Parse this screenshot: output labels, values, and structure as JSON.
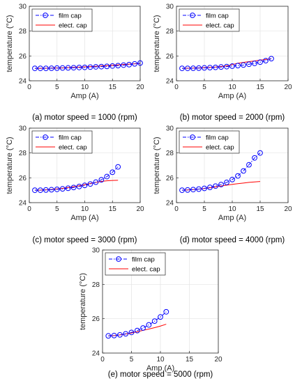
{
  "chart_data": [
    {
      "type": "line",
      "caption": "(a) motor speed = 1000 (rpm)",
      "xlabel": "Amp (A)",
      "ylabel": "temperature (°C)",
      "xlim": [
        0,
        20
      ],
      "ylim": [
        24,
        30
      ],
      "xticks": [
        0,
        5,
        10,
        15,
        20
      ],
      "yticks": [
        24,
        26,
        28,
        30
      ],
      "grid": true,
      "legend_position": "top-left",
      "series": [
        {
          "name": "film cap",
          "color": "#0000ff",
          "style": "dash-dot with circle markers",
          "x": [
            1,
            2,
            3,
            4,
            5,
            6,
            7,
            8,
            9,
            10,
            11,
            12,
            13,
            14,
            15,
            16,
            17,
            18,
            19,
            20
          ],
          "y": [
            25.0,
            25.0,
            25.0,
            25.01,
            25.02,
            25.03,
            25.04,
            25.05,
            25.07,
            25.08,
            25.1,
            25.12,
            25.14,
            25.16,
            25.19,
            25.22,
            25.26,
            25.3,
            25.36,
            25.43
          ]
        },
        {
          "name": "elect. cap",
          "color": "#ff0000",
          "style": "solid",
          "x": [
            1,
            2,
            3,
            4,
            5,
            6,
            7,
            8,
            9,
            10,
            11,
            12,
            13,
            14,
            15,
            16,
            17,
            18,
            19,
            20
          ],
          "y": [
            25.0,
            25.0,
            25.01,
            25.02,
            25.03,
            25.04,
            25.06,
            25.08,
            25.1,
            25.12,
            25.14,
            25.16,
            25.19,
            25.22,
            25.25,
            25.28,
            25.31,
            25.34,
            25.37,
            25.4
          ]
        }
      ]
    },
    {
      "type": "line",
      "caption": "(b) motor speed = 2000 (rpm)",
      "xlabel": "Amp (A)",
      "ylabel": "temperature (°C)",
      "xlim": [
        0,
        20
      ],
      "ylim": [
        24,
        30
      ],
      "xticks": [
        0,
        5,
        10,
        15,
        20
      ],
      "yticks": [
        24,
        26,
        28,
        30
      ],
      "grid": true,
      "legend_position": "top-left",
      "series": [
        {
          "name": "film cap",
          "color": "#0000ff",
          "style": "dash-dot with circle markers",
          "x": [
            1,
            2,
            3,
            4,
            5,
            6,
            7,
            8,
            9,
            10,
            11,
            12,
            13,
            14,
            15,
            16,
            17
          ],
          "y": [
            25.0,
            25.0,
            25.01,
            25.02,
            25.04,
            25.06,
            25.08,
            25.11,
            25.14,
            25.18,
            25.22,
            25.27,
            25.33,
            25.4,
            25.5,
            25.62,
            25.78
          ]
        },
        {
          "name": "elect. cap",
          "color": "#ff0000",
          "style": "solid",
          "x": [
            1,
            2,
            3,
            4,
            5,
            6,
            7,
            8,
            9,
            10,
            11,
            12,
            13,
            14,
            15,
            16,
            17
          ],
          "y": [
            25.0,
            25.01,
            25.02,
            25.04,
            25.06,
            25.08,
            25.11,
            25.15,
            25.2,
            25.3,
            25.42,
            25.48,
            25.54,
            25.6,
            25.66,
            25.72,
            25.78
          ]
        }
      ]
    },
    {
      "type": "line",
      "caption": "(c) motor speed = 3000 (rpm)",
      "xlabel": "Amp (A)",
      "ylabel": "temperature (°C)",
      "xlim": [
        0,
        20
      ],
      "ylim": [
        24,
        30
      ],
      "xticks": [
        0,
        5,
        10,
        15,
        20
      ],
      "yticks": [
        24,
        26,
        28,
        30
      ],
      "grid": true,
      "legend_position": "top-left",
      "series": [
        {
          "name": "film cap",
          "color": "#0000ff",
          "style": "dash-dot with circle markers",
          "x": [
            1,
            2,
            3,
            4,
            5,
            6,
            7,
            8,
            9,
            10,
            11,
            12,
            13,
            14,
            15,
            16
          ],
          "y": [
            25.0,
            25.0,
            25.02,
            25.04,
            25.07,
            25.11,
            25.16,
            25.22,
            25.3,
            25.39,
            25.5,
            25.65,
            25.84,
            26.1,
            26.45,
            26.88
          ]
        },
        {
          "name": "elect. cap",
          "color": "#ff0000",
          "style": "solid",
          "x": [
            1,
            2,
            3,
            4,
            5,
            6,
            7,
            8,
            9,
            10,
            11,
            12,
            13,
            14,
            15,
            16
          ],
          "y": [
            25.0,
            25.01,
            25.03,
            25.06,
            25.1,
            25.15,
            25.21,
            25.28,
            25.36,
            25.45,
            25.54,
            25.63,
            25.71,
            25.76,
            25.79,
            25.8
          ]
        }
      ]
    },
    {
      "type": "line",
      "caption": "(d) motor speed = 4000 (rpm)",
      "xlabel": "Amp (A)",
      "ylabel": "temperature (°C)",
      "xlim": [
        0,
        20
      ],
      "ylim": [
        24,
        30
      ],
      "xticks": [
        0,
        5,
        10,
        15,
        20
      ],
      "yticks": [
        24,
        26,
        28,
        30
      ],
      "grid": true,
      "legend_position": "top-left",
      "series": [
        {
          "name": "film cap",
          "color": "#0000ff",
          "style": "dash-dot with circle markers",
          "x": [
            1,
            2,
            3,
            4,
            5,
            6,
            7,
            8,
            9,
            10,
            11,
            12,
            13,
            14,
            15
          ],
          "y": [
            25.0,
            25.02,
            25.05,
            25.09,
            25.15,
            25.23,
            25.33,
            25.46,
            25.63,
            25.86,
            26.15,
            26.55,
            27.05,
            27.6,
            28.0
          ]
        },
        {
          "name": "elect. cap",
          "color": "#ff0000",
          "style": "solid",
          "x": [
            1,
            2,
            3,
            4,
            5,
            6,
            7,
            8,
            9,
            10,
            11,
            12,
            13,
            14,
            15
          ],
          "y": [
            25.0,
            25.02,
            25.05,
            25.09,
            25.14,
            25.2,
            25.27,
            25.34,
            25.41,
            25.47,
            25.53,
            25.58,
            25.63,
            25.67,
            25.7
          ]
        }
      ]
    },
    {
      "type": "line",
      "caption": "(e) motor speed = 5000 (rpm)",
      "xlabel": "Amp (A)",
      "ylabel": "temperature (°C)",
      "xlim": [
        0,
        20
      ],
      "ylim": [
        24,
        30
      ],
      "xticks": [
        0,
        5,
        10,
        15,
        20
      ],
      "yticks": [
        24,
        26,
        28,
        30
      ],
      "grid": true,
      "legend_position": "top-left",
      "series": [
        {
          "name": "film cap",
          "color": "#0000ff",
          "style": "dash-dot with circle markers",
          "x": [
            1,
            2,
            3,
            4,
            5,
            6,
            7,
            8,
            9,
            10,
            11
          ],
          "y": [
            25.0,
            25.02,
            25.06,
            25.12,
            25.2,
            25.31,
            25.46,
            25.64,
            25.86,
            26.1,
            26.4
          ]
        },
        {
          "name": "elect. cap",
          "color": "#ff0000",
          "style": "solid",
          "x": [
            1,
            2,
            3,
            4,
            5,
            6,
            7,
            8,
            9,
            10,
            11
          ],
          "y": [
            25.0,
            25.02,
            25.06,
            25.11,
            25.17,
            25.24,
            25.32,
            25.4,
            25.48,
            25.57,
            25.68
          ]
        }
      ]
    }
  ]
}
